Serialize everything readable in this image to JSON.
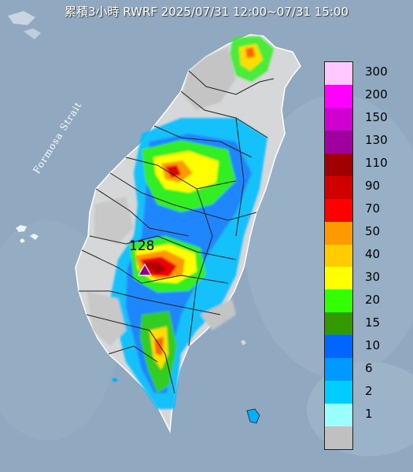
{
  "title": "累積3小時 RWRF 2025/07/31 12:00~07/31 15:00",
  "sea_label": "Formosa Strait",
  "max_marker": {
    "label": "128",
    "icon": "triangle-marker-icon"
  },
  "legend": [
    {
      "label": "300",
      "color": "#ffc8ff"
    },
    {
      "label": "200",
      "color": "#ff00ff"
    },
    {
      "label": "150",
      "color": "#d000d0"
    },
    {
      "label": "130",
      "color": "#a000a0"
    },
    {
      "label": "110",
      "color": "#a00000"
    },
    {
      "label": "90",
      "color": "#d00000"
    },
    {
      "label": "70",
      "color": "#ff0000"
    },
    {
      "label": "50",
      "color": "#ff9900"
    },
    {
      "label": "40",
      "color": "#ffcc00"
    },
    {
      "label": "30",
      "color": "#ffff00"
    },
    {
      "label": "20",
      "color": "#33ff00"
    },
    {
      "label": "15",
      "color": "#339900"
    },
    {
      "label": "10",
      "color": "#0066ff"
    },
    {
      "label": "6",
      "color": "#0099ff"
    },
    {
      "label": "2",
      "color": "#00ccff"
    },
    {
      "label": "1",
      "color": "#99ffff"
    },
    {
      "label": "",
      "color": "#c0c0c0"
    }
  ],
  "colors": {
    "sea": "#8fa8bf",
    "land": "#d8d8d8",
    "border": "#222222"
  }
}
